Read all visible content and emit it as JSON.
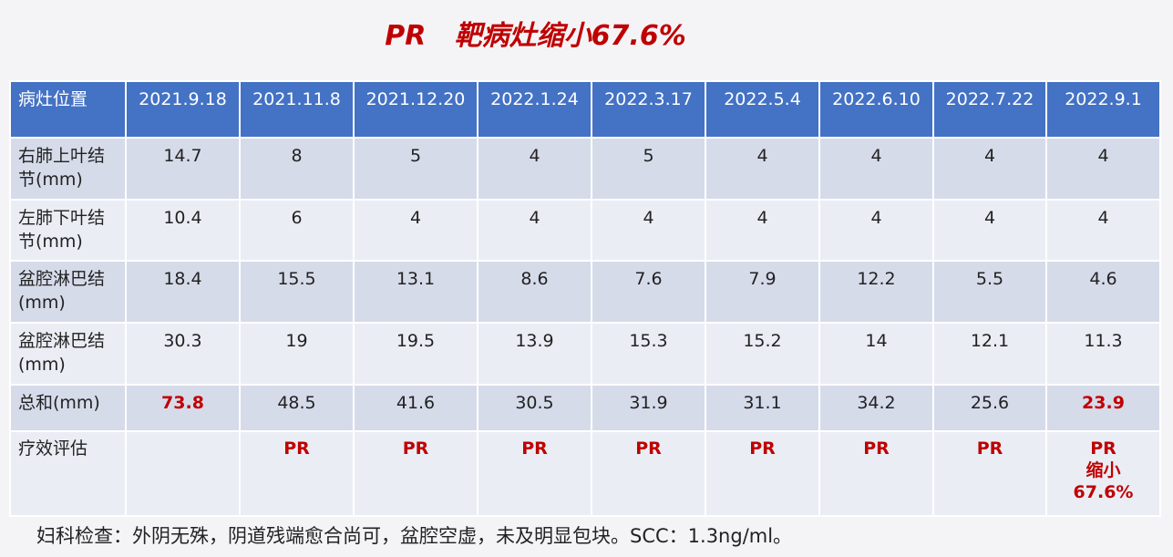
{
  "title": "PR   靶病灶缩小67.6%",
  "table": {
    "header": [
      "病灶位置",
      "2021.9.18",
      "2021.11.8",
      "2021.12.20",
      "2022.1.24",
      "2022.3.17",
      "2022.5.4",
      "2022.6.10",
      "2022.7.22",
      "2022.9.1"
    ],
    "rows": [
      [
        "右肺上叶结节(mm)",
        14.7,
        8,
        5,
        4,
        5,
        4,
        4,
        4,
        4
      ],
      [
        "左肺下叶结节(mm)",
        10.4,
        6,
        4,
        4,
        4,
        4,
        4,
        4,
        4
      ],
      [
        "盆腔淋巴结(mm)",
        18.4,
        15.5,
        13.1,
        8.6,
        7.6,
        7.9,
        12.2,
        5.5,
        4.6
      ],
      [
        "盆腔淋巴结(mm)",
        30.3,
        19,
        19.5,
        13.9,
        15.3,
        15.2,
        14,
        12.1,
        11.3
      ],
      [
        "总和(mm)",
        73.8,
        48.5,
        41.6,
        30.5,
        31.9,
        31.1,
        34.2,
        25.6,
        23.9
      ],
      [
        "疗效评估",
        null,
        "PR",
        "PR",
        "PR",
        "PR",
        "PR",
        "PR",
        "PR",
        "PR\n缩小\n67.6%"
      ]
    ]
  },
  "footer": "妇科检查：外阴无殊，阴道残端愈合尚可，盆腔空虚，未及明显包块。SCC：1.3ng/ml。"
}
